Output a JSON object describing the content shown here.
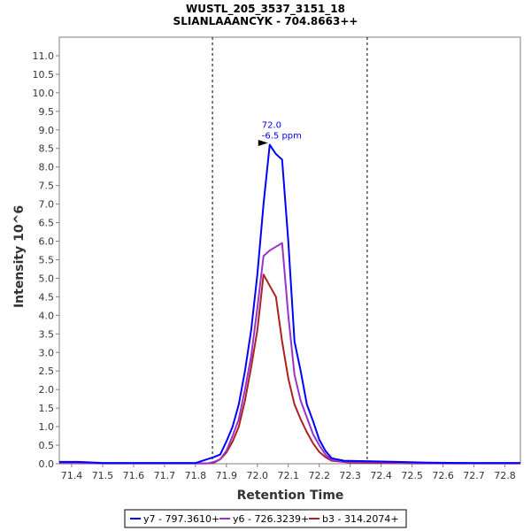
{
  "chart_data": {
    "type": "line",
    "title": "WUSTL_205_3537_3151_18",
    "subtitle": "SLIANLAAANCYK - 704.8663++",
    "xlabel": "Retention Time",
    "ylabel": "Intensity 10^6",
    "xlim": [
      71.36,
      72.85
    ],
    "ylim": [
      0,
      11.5
    ],
    "x_ticks": [
      "71.4",
      "71.5",
      "71.6",
      "71.7",
      "71.8",
      "71.9",
      "72.0",
      "72.1",
      "72.2",
      "72.3",
      "72.4",
      "72.5",
      "72.6",
      "72.7",
      "72.8"
    ],
    "y_ticks": [
      "0.0",
      "0.5",
      "1.0",
      "1.5",
      "2.0",
      "2.5",
      "3.0",
      "3.5",
      "4.0",
      "4.5",
      "5.0",
      "5.5",
      "6.0",
      "6.5",
      "7.0",
      "7.5",
      "8.0",
      "8.5",
      "9.0",
      "9.5",
      "10.0",
      "10.5",
      "11.0"
    ],
    "grid": false,
    "legend_position": "bottom",
    "boundaries": [
      71.855,
      72.355
    ],
    "annotation": {
      "x": 72.04,
      "y": 8.65,
      "line1": "72.0",
      "line2": "-6.5 ppm",
      "color": "#0000ff"
    },
    "series": [
      {
        "name": "y7 - 797.3610+",
        "color": "#0000ff",
        "points": [
          [
            71.36,
            0.05
          ],
          [
            71.42,
            0.05
          ],
          [
            71.5,
            0.02
          ],
          [
            71.6,
            0.02
          ],
          [
            71.7,
            0.02
          ],
          [
            71.8,
            0.02
          ],
          [
            71.83,
            0.1
          ],
          [
            71.86,
            0.18
          ],
          [
            71.88,
            0.25
          ],
          [
            71.9,
            0.6
          ],
          [
            71.92,
            1.0
          ],
          [
            71.94,
            1.6
          ],
          [
            71.96,
            2.5
          ],
          [
            71.98,
            3.6
          ],
          [
            72.0,
            5.1
          ],
          [
            72.02,
            7.0
          ],
          [
            72.04,
            8.6
          ],
          [
            72.06,
            8.35
          ],
          [
            72.08,
            8.2
          ],
          [
            72.1,
            6.0
          ],
          [
            72.12,
            3.3
          ],
          [
            72.14,
            2.5
          ],
          [
            72.16,
            1.6
          ],
          [
            72.18,
            1.15
          ],
          [
            72.2,
            0.65
          ],
          [
            72.22,
            0.35
          ],
          [
            72.24,
            0.15
          ],
          [
            72.28,
            0.08
          ],
          [
            72.35,
            0.07
          ],
          [
            72.45,
            0.05
          ],
          [
            72.55,
            0.03
          ],
          [
            72.7,
            0.02
          ],
          [
            72.85,
            0.02
          ]
        ]
      },
      {
        "name": "y6 - 726.3239+",
        "color": "#9933cc",
        "points": [
          [
            71.36,
            0.03
          ],
          [
            71.5,
            0.01
          ],
          [
            71.7,
            0.01
          ],
          [
            71.84,
            0.01
          ],
          [
            71.86,
            0.05
          ],
          [
            71.88,
            0.12
          ],
          [
            71.9,
            0.35
          ],
          [
            71.92,
            0.75
          ],
          [
            71.94,
            1.2
          ],
          [
            71.96,
            2.0
          ],
          [
            71.98,
            2.9
          ],
          [
            72.0,
            4.2
          ],
          [
            72.02,
            5.6
          ],
          [
            72.04,
            5.75
          ],
          [
            72.06,
            5.85
          ],
          [
            72.08,
            5.95
          ],
          [
            72.1,
            4.0
          ],
          [
            72.12,
            2.4
          ],
          [
            72.14,
            1.7
          ],
          [
            72.16,
            1.25
          ],
          [
            72.18,
            0.8
          ],
          [
            72.2,
            0.5
          ],
          [
            72.22,
            0.25
          ],
          [
            72.24,
            0.1
          ],
          [
            72.28,
            0.05
          ],
          [
            72.4,
            0.04
          ],
          [
            72.6,
            0.01
          ],
          [
            72.85,
            0.01
          ]
        ]
      },
      {
        "name": "b3 - 314.2074+",
        "color": "#aa2222",
        "points": [
          [
            71.36,
            0.02
          ],
          [
            71.5,
            0.01
          ],
          [
            71.7,
            0.01
          ],
          [
            71.84,
            0.01
          ],
          [
            71.86,
            0.03
          ],
          [
            71.88,
            0.12
          ],
          [
            71.9,
            0.3
          ],
          [
            71.92,
            0.6
          ],
          [
            71.94,
            1.0
          ],
          [
            71.96,
            1.7
          ],
          [
            71.98,
            2.6
          ],
          [
            72.0,
            3.6
          ],
          [
            72.02,
            5.1
          ],
          [
            72.04,
            4.8
          ],
          [
            72.06,
            4.5
          ],
          [
            72.08,
            3.3
          ],
          [
            72.1,
            2.3
          ],
          [
            72.12,
            1.6
          ],
          [
            72.14,
            1.2
          ],
          [
            72.16,
            0.85
          ],
          [
            72.18,
            0.55
          ],
          [
            72.2,
            0.32
          ],
          [
            72.22,
            0.18
          ],
          [
            72.24,
            0.08
          ],
          [
            72.3,
            0.03
          ],
          [
            72.5,
            0.01
          ],
          [
            72.85,
            0.01
          ]
        ]
      }
    ]
  }
}
